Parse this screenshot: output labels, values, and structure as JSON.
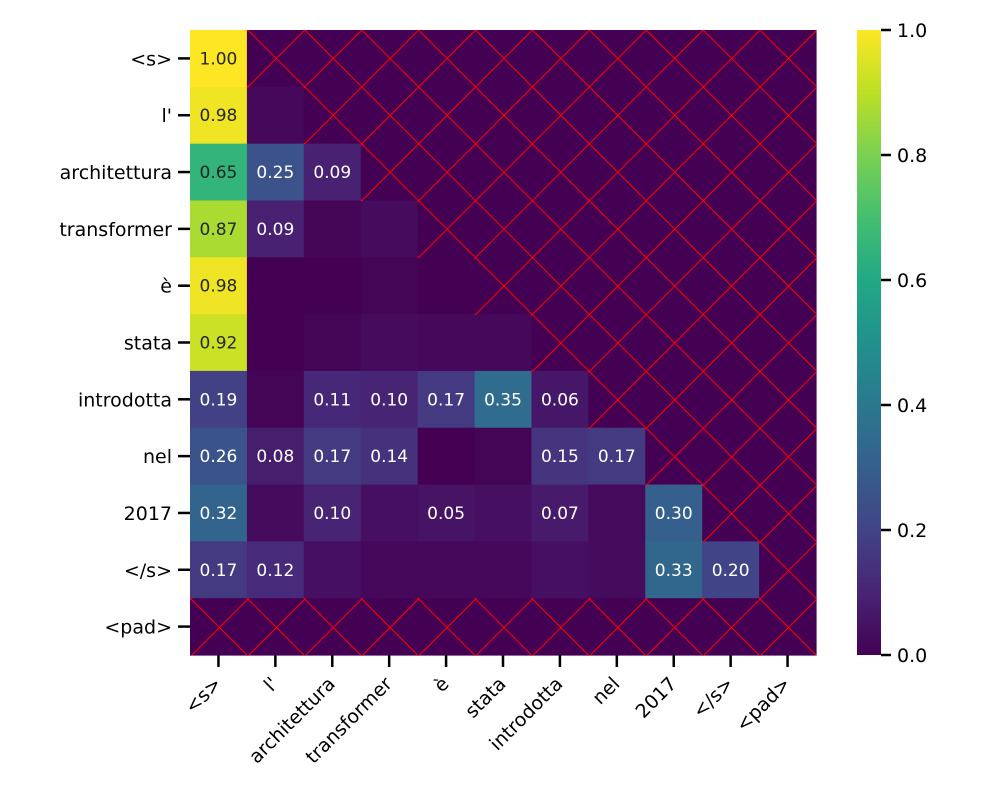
{
  "chart_data": {
    "type": "heatmap",
    "title": "",
    "xlabel": "",
    "ylabel": "",
    "rows": [
      "<s>",
      "l'",
      "architettura",
      "transformer",
      "è",
      "stata",
      "introdotta",
      "nel",
      "2017",
      "</s>",
      "<pad>"
    ],
    "columns": [
      "<s>",
      "l'",
      "architettura",
      "transformer",
      "è",
      "stata",
      "introdotta",
      "nel",
      "2017",
      "</s>",
      "<pad>"
    ],
    "values": [
      [
        1.0,
        null,
        null,
        null,
        null,
        null,
        null,
        null,
        null,
        null,
        null
      ],
      [
        0.98,
        0.02,
        null,
        null,
        null,
        null,
        null,
        null,
        null,
        null,
        null
      ],
      [
        0.65,
        0.25,
        0.09,
        null,
        null,
        null,
        null,
        null,
        null,
        null,
        null
      ],
      [
        0.87,
        0.09,
        0.01,
        0.03,
        null,
        null,
        null,
        null,
        null,
        null,
        null
      ],
      [
        0.98,
        0.0,
        0.0,
        0.01,
        0.0,
        null,
        null,
        null,
        null,
        null,
        null
      ],
      [
        0.92,
        0.0,
        0.01,
        0.03,
        0.02,
        0.02,
        null,
        null,
        null,
        null,
        null
      ],
      [
        0.19,
        0.01,
        0.11,
        0.1,
        0.17,
        0.35,
        0.06,
        null,
        null,
        null,
        null
      ],
      [
        0.26,
        0.08,
        0.17,
        0.14,
        0.0,
        0.01,
        0.15,
        0.17,
        null,
        null,
        null
      ],
      [
        0.32,
        0.03,
        0.1,
        0.04,
        0.05,
        0.04,
        0.07,
        0.03,
        0.3,
        null,
        null
      ],
      [
        0.17,
        0.12,
        0.04,
        0.02,
        0.02,
        0.02,
        0.04,
        0.03,
        0.33,
        0.2,
        null
      ],
      [
        null,
        null,
        null,
        null,
        null,
        null,
        null,
        null,
        null,
        null,
        null
      ]
    ],
    "annotation_threshold": 0.05,
    "masked_cell_fill": "#440154",
    "mask_hatch_color": "#ff0000",
    "colormap": "viridis",
    "vmin": 0.0,
    "vmax": 1.0,
    "colorbar_ticks": [
      0.0,
      0.2,
      0.4,
      0.6,
      0.8,
      1.0
    ],
    "colorbar_tick_labels": [
      "0.0",
      "0.2",
      "0.4",
      "0.6",
      "0.8",
      "1.0"
    ]
  }
}
